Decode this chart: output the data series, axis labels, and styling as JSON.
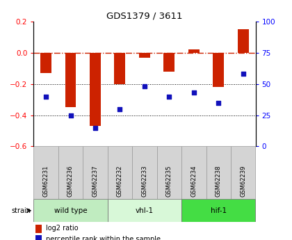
{
  "title": "GDS1379 / 3611",
  "samples": [
    "GSM62231",
    "GSM62236",
    "GSM62237",
    "GSM62232",
    "GSM62233",
    "GSM62235",
    "GSM62234",
    "GSM62238",
    "GSM62239"
  ],
  "log2_ratio": [
    -0.13,
    -0.35,
    -0.47,
    -0.2,
    -0.03,
    -0.12,
    0.02,
    -0.22,
    0.15
  ],
  "percentile_rank": [
    40,
    25,
    15,
    30,
    48,
    40,
    43,
    35,
    58
  ],
  "groups": [
    {
      "label": "wild type",
      "start": 0,
      "end": 3,
      "color": "#c0ecc0"
    },
    {
      "label": "vhl-1",
      "start": 3,
      "end": 6,
      "color": "#d8f8d8"
    },
    {
      "label": "hif-1",
      "start": 6,
      "end": 9,
      "color": "#44dd44"
    }
  ],
  "ylim_left": [
    -0.6,
    0.2
  ],
  "ylim_right": [
    0,
    100
  ],
  "yticks_left": [
    0.2,
    0.0,
    -0.2,
    -0.4,
    -0.6
  ],
  "yticks_right": [
    100,
    75,
    50,
    25,
    0
  ],
  "bar_color": "#cc2200",
  "dot_color": "#1111bb",
  "bar_width": 0.45,
  "hline_color": "#cc2200",
  "hline_style": "-.",
  "grid_color": "black",
  "grid_style": ":",
  "background_color": "#ffffff",
  "sample_box_color": "#d4d4d4",
  "strain_label": "strain",
  "legend_bar_label": "log2 ratio",
  "legend_dot_label": "percentile rank within the sample"
}
